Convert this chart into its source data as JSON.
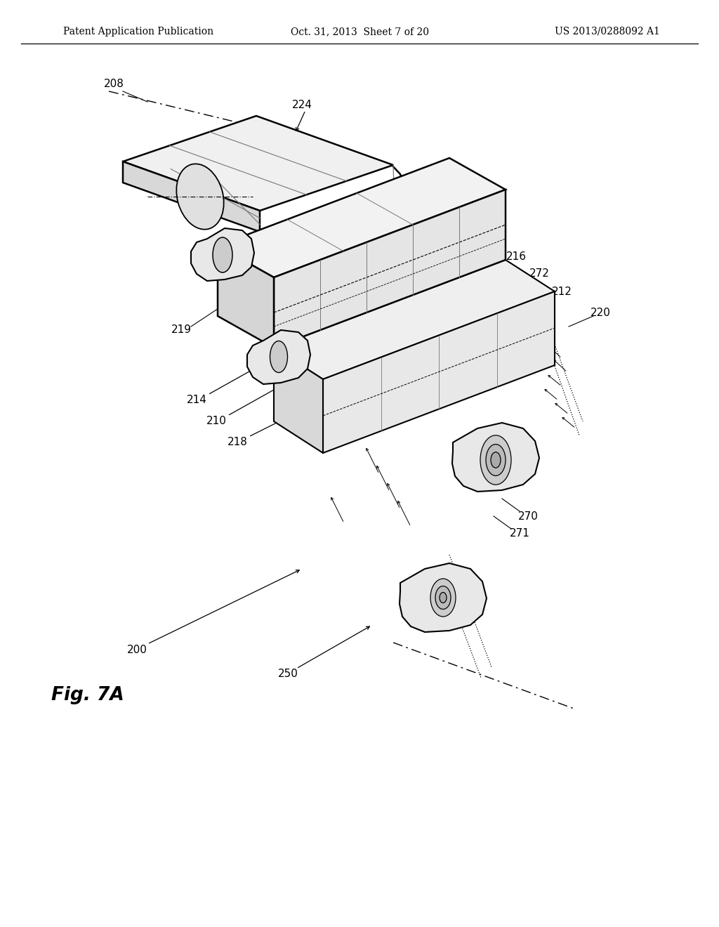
{
  "bg_color": "#ffffff",
  "line_color": "#000000",
  "gray_color": "#777777",
  "header_left": "Patent Application Publication",
  "header_center": "Oct. 31, 2013  Sheet 7 of 20",
  "header_right": "US 2013/0288092 A1",
  "fig_label": "Fig. 7A"
}
